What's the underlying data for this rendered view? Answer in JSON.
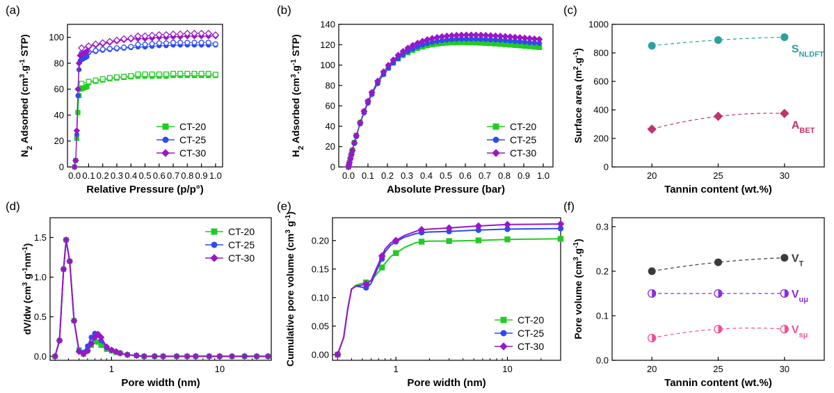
{
  "colors": {
    "green": "#22cc22",
    "blue": "#2a4cf0",
    "purple": "#9a16c8",
    "teal": "#2aa0a0",
    "magenta": "#c0336e",
    "gray": "#3a3a3a",
    "violet": "#8a2be2",
    "pink": "#f0509a"
  },
  "chart_data": [
    {
      "id": "a",
      "panel_label": "(a)",
      "type": "scatter",
      "xlabel": "Relative Pressure (p/p°)",
      "ylabel_parts": [
        "N",
        "2",
        " Adsorbed (cm",
        "3",
        ".g",
        "-1",
        " STP)"
      ],
      "xlim": [
        -0.05,
        1.05
      ],
      "ylim": [
        0,
        110
      ],
      "xticks": [
        0.0,
        0.1,
        0.2,
        0.3,
        0.4,
        0.5,
        0.6,
        0.7,
        0.8,
        0.9,
        1.0
      ],
      "xtick_labels": [
        "0.0",
        "0.1",
        "0.2",
        "0.3",
        "0.4",
        "0.5",
        "0.6",
        "0.7",
        "0.8",
        "0.9",
        "1.0"
      ],
      "yticks": [
        0,
        20,
        40,
        60,
        80,
        100
      ],
      "ytick_labels": [
        "0",
        "20",
        "40",
        "60",
        "80",
        "100"
      ],
      "legend": "bottom-right",
      "series": [
        {
          "name": "CT-20",
          "marker": "square",
          "color": "#22cc22",
          "iso": [
            0,
            5,
            22,
            42,
            55,
            60,
            62,
            63.5,
            65,
            66,
            67,
            68,
            68.5,
            69,
            69.5,
            70,
            70,
            70,
            70,
            70.5,
            70.5,
            70.5,
            70.5,
            70.5,
            70.5,
            70.5
          ],
          "p0": 0.5,
          "plateau": 71,
          "knee": 0.12,
          "desorb_bump": 1.5
        },
        {
          "name": "CT-25",
          "marker": "circle",
          "color": "#2a4cf0",
          "iso": [
            0,
            5,
            25,
            55,
            75,
            82,
            85,
            87,
            88,
            89,
            90,
            90.5,
            91,
            91.5,
            92,
            92.5,
            93,
            93.5,
            93.5,
            94,
            94,
            94,
            94,
            94,
            94,
            94
          ],
          "p0": 0.5,
          "plateau": 94,
          "knee": 0.12,
          "desorb_bump": 2
        },
        {
          "name": "CT-30",
          "marker": "diamond",
          "color": "#9a16c8",
          "iso": [
            0,
            5,
            28,
            60,
            80,
            86,
            89,
            91,
            92.5,
            94,
            95,
            96,
            97,
            98,
            98.5,
            99,
            99.5,
            100,
            100,
            100.5,
            100.5,
            101,
            101,
            101,
            101,
            101
          ],
          "p0": 0.5,
          "plateau": 101,
          "knee": 0.12,
          "desorb_bump": 2
        }
      ]
    },
    {
      "id": "b",
      "panel_label": "(b)",
      "type": "scatter",
      "xlabel": "Absolute Pressure (bar)",
      "ylabel_parts": [
        "H",
        "2",
        " Adsorbed (cm",
        "3",
        ".g",
        "-1",
        " STP)"
      ],
      "xlim": [
        -0.05,
        1.05
      ],
      "ylim": [
        0,
        140
      ],
      "xticks": [
        0.0,
        0.1,
        0.2,
        0.3,
        0.4,
        0.5,
        0.6,
        0.7,
        0.8,
        0.9,
        1.0
      ],
      "xtick_labels": [
        "0.0",
        "0.1",
        "0.2",
        "0.3",
        "0.4",
        "0.5",
        "0.6",
        "0.7",
        "0.8",
        "0.9",
        "1.0"
      ],
      "yticks": [
        0,
        20,
        40,
        60,
        80,
        100,
        120,
        140
      ],
      "ytick_labels": [
        "0",
        "20",
        "40",
        "60",
        "80",
        "100",
        "120",
        "140"
      ],
      "legend": "bottom-right",
      "series": [
        {
          "name": "CT-20",
          "marker": "square",
          "color": "#22cc22",
          "a": 135,
          "k": 6.5,
          "end": 117
        },
        {
          "name": "CT-25",
          "marker": "circle",
          "color": "#2a4cf0",
          "a": 140,
          "k": 6.0,
          "end": 121
        },
        {
          "name": "CT-30",
          "marker": "diamond",
          "color": "#9a16c8",
          "a": 144,
          "k": 6.0,
          "end": 125
        }
      ]
    },
    {
      "id": "c",
      "panel_label": "(c)",
      "type": "scatter",
      "xlabel": "Tannin content (wt.%)",
      "ylabel_parts": [
        "Surface area (m",
        "2",
        ".g",
        "-1",
        ")"
      ],
      "xlim": [
        17,
        33
      ],
      "ylim": [
        0,
        1000
      ],
      "xticks": [
        20,
        25,
        30
      ],
      "xtick_labels": [
        "20",
        "25",
        "30"
      ],
      "yticks": [
        0,
        200,
        400,
        600,
        800,
        1000
      ],
      "ytick_labels": [
        "0",
        "200",
        "400",
        "600",
        "800",
        "1000"
      ],
      "series": [
        {
          "name_main": "S",
          "name_sub": "NLDFT",
          "marker": "circle",
          "color": "#2aa0a0",
          "x": [
            20,
            25,
            30
          ],
          "y": [
            850,
            890,
            910
          ]
        },
        {
          "name_main": "A",
          "name_sub": "BET",
          "marker": "diamond",
          "color": "#c0336e",
          "x": [
            20,
            25,
            30
          ],
          "y": [
            265,
            355,
            375
          ]
        }
      ]
    },
    {
      "id": "d",
      "panel_label": "(d)",
      "type": "line",
      "xlabel": "Pore width (nm)",
      "ylabel_parts": [
        "dV/dw (cm",
        "3",
        " g",
        "-1",
        "nm",
        "-1",
        ")"
      ],
      "xscale": "log",
      "xlim": [
        0.27,
        30
      ],
      "ylim": [
        -0.05,
        1.75
      ],
      "xticks": [
        1,
        10
      ],
      "xtick_labels": [
        "1",
        "10"
      ],
      "yticks": [
        0.0,
        0.5,
        1.0,
        1.5
      ],
      "ytick_labels": [
        "0.0",
        "0.5",
        "1.0",
        "1.5"
      ],
      "legend": "top-right",
      "series": [
        {
          "name": "CT-20",
          "marker": "square",
          "color": "#22cc22",
          "x": [
            0.3,
            0.33,
            0.36,
            0.38,
            0.41,
            0.45,
            0.5,
            0.55,
            0.6,
            0.65,
            0.7,
            0.75,
            0.8,
            0.9,
            1.0,
            1.1,
            1.2,
            1.4,
            1.7,
            2.0,
            2.5,
            3,
            4,
            5,
            6,
            8,
            10,
            13,
            17,
            22,
            28
          ],
          "y": [
            0,
            0.2,
            1.1,
            1.47,
            1.2,
            0.45,
            0.08,
            0.03,
            0.07,
            0.14,
            0.19,
            0.18,
            0.14,
            0.09,
            0.07,
            0.05,
            0.04,
            0.02,
            0.01,
            0,
            0,
            0,
            0,
            0,
            0,
            0,
            0,
            0,
            0,
            0,
            0
          ]
        },
        {
          "name": "CT-25",
          "marker": "circle",
          "color": "#2a4cf0",
          "x": [
            0.3,
            0.33,
            0.36,
            0.38,
            0.41,
            0.45,
            0.5,
            0.55,
            0.6,
            0.65,
            0.7,
            0.75,
            0.8,
            0.9,
            1.0,
            1.1,
            1.2,
            1.4,
            1.7,
            2.0,
            2.5,
            3,
            4,
            5,
            6,
            8,
            10,
            13,
            17,
            22,
            28
          ],
          "y": [
            0,
            0.2,
            1.1,
            1.47,
            1.2,
            0.45,
            0.07,
            0.05,
            0.13,
            0.24,
            0.29,
            0.27,
            0.2,
            0.11,
            0.08,
            0.06,
            0.04,
            0.02,
            0.01,
            0,
            0,
            0,
            0,
            0,
            0,
            0,
            0,
            0,
            0,
            0,
            0
          ]
        },
        {
          "name": "CT-30",
          "marker": "diamond",
          "color": "#9a16c8",
          "x": [
            0.3,
            0.33,
            0.36,
            0.38,
            0.41,
            0.45,
            0.5,
            0.55,
            0.6,
            0.65,
            0.7,
            0.75,
            0.8,
            0.9,
            1.0,
            1.1,
            1.2,
            1.4,
            1.7,
            2.0,
            2.5,
            3,
            4,
            5,
            6,
            8,
            10,
            13,
            17,
            22,
            28
          ],
          "y": [
            0,
            0.2,
            1.1,
            1.47,
            1.2,
            0.45,
            0.06,
            0.03,
            0.07,
            0.16,
            0.24,
            0.28,
            0.24,
            0.12,
            0.08,
            0.06,
            0.04,
            0.02,
            0.01,
            0,
            0,
            0,
            0,
            0,
            0,
            0,
            0,
            0,
            0,
            0,
            0
          ]
        }
      ]
    },
    {
      "id": "e",
      "panel_label": "(e)",
      "type": "line",
      "xlabel": "Pore width (nm)",
      "ylabel_parts": [
        "Cumulative pore volume (cm",
        "3",
        " g",
        "-1",
        ")"
      ],
      "xscale": "log",
      "xlim": [
        0.27,
        30
      ],
      "ylim": [
        -0.01,
        0.24
      ],
      "xticks": [
        1,
        10
      ],
      "xtick_labels": [
        "1",
        "10"
      ],
      "yticks": [
        0.0,
        0.05,
        0.1,
        0.15,
        0.2
      ],
      "ytick_labels": [
        "0.00",
        "0.05",
        "0.10",
        "0.15",
        "0.20"
      ],
      "legend": "bottom-right",
      "series": [
        {
          "name": "CT-20",
          "marker": "square",
          "color": "#22cc22",
          "x": [
            0.3,
            0.34,
            0.37,
            0.4,
            0.44,
            0.5,
            0.55,
            0.6,
            0.7,
            0.8,
            0.9,
            1.0,
            1.2,
            1.5,
            1.7,
            2,
            3,
            5,
            10,
            30
          ],
          "y": [
            0,
            0.03,
            0.08,
            0.115,
            0.122,
            0.125,
            0.127,
            0.13,
            0.145,
            0.16,
            0.172,
            0.178,
            0.188,
            0.196,
            0.198,
            0.199,
            0.199,
            0.2,
            0.202,
            0.203
          ],
          "markers_at": [
            0.3,
            0.54,
            0.75,
            1.0,
            1.7,
            3,
            5.5,
            10,
            30
          ]
        },
        {
          "name": "CT-25",
          "marker": "circle",
          "color": "#2a4cf0",
          "x": [
            0.3,
            0.34,
            0.37,
            0.4,
            0.44,
            0.5,
            0.55,
            0.6,
            0.7,
            0.8,
            0.9,
            1.0,
            1.2,
            1.5,
            1.7,
            2,
            3,
            5,
            10,
            30
          ],
          "y": [
            0,
            0.03,
            0.08,
            0.115,
            0.12,
            0.118,
            0.117,
            0.125,
            0.155,
            0.18,
            0.192,
            0.198,
            0.206,
            0.212,
            0.214,
            0.215,
            0.216,
            0.218,
            0.22,
            0.221
          ],
          "markers_at": [
            0.3,
            0.54,
            0.75,
            1.0,
            1.7,
            3,
            5.5,
            10,
            30
          ]
        },
        {
          "name": "CT-30",
          "marker": "diamond",
          "color": "#9a16c8",
          "x": [
            0.3,
            0.34,
            0.37,
            0.4,
            0.44,
            0.5,
            0.55,
            0.6,
            0.7,
            0.8,
            0.9,
            1.0,
            1.2,
            1.5,
            1.7,
            2,
            3,
            5,
            10,
            30
          ],
          "y": [
            0,
            0.03,
            0.08,
            0.115,
            0.12,
            0.122,
            0.124,
            0.13,
            0.16,
            0.185,
            0.196,
            0.2,
            0.209,
            0.216,
            0.219,
            0.22,
            0.222,
            0.225,
            0.228,
            0.229
          ],
          "markers_at": [
            0.3,
            0.54,
            0.75,
            1.0,
            1.7,
            3,
            5.5,
            10,
            30
          ]
        }
      ]
    },
    {
      "id": "f",
      "panel_label": "(f)",
      "type": "scatter",
      "xlabel": "Tannin content (wt.%)",
      "ylabel_parts": [
        "Pore volume (cm",
        "3",
        ".g",
        "-1",
        ")"
      ],
      "xlim": [
        17,
        33
      ],
      "ylim": [
        0,
        0.32
      ],
      "xticks": [
        20,
        25,
        30
      ],
      "xtick_labels": [
        "20",
        "25",
        "30"
      ],
      "yticks": [
        0.0,
        0.1,
        0.2,
        0.3
      ],
      "ytick_labels": [
        "0.0",
        "0.1",
        "0.2",
        "0.3"
      ],
      "series": [
        {
          "name_main": "V",
          "name_sub": "T",
          "marker": "circle",
          "fill": "full",
          "color": "#3a3a3a",
          "x": [
            20,
            25,
            30
          ],
          "y": [
            0.2,
            0.22,
            0.23
          ]
        },
        {
          "name_main": "V",
          "name_sub": "uμ",
          "marker": "circle",
          "fill": "half",
          "color": "#8a2be2",
          "x": [
            20,
            25,
            30
          ],
          "y": [
            0.15,
            0.15,
            0.15
          ]
        },
        {
          "name_main": "V",
          "name_sub": "sμ",
          "marker": "circle",
          "fill": "half",
          "color": "#f0509a",
          "x": [
            20,
            25,
            30
          ],
          "y": [
            0.05,
            0.07,
            0.07
          ]
        }
      ]
    }
  ]
}
